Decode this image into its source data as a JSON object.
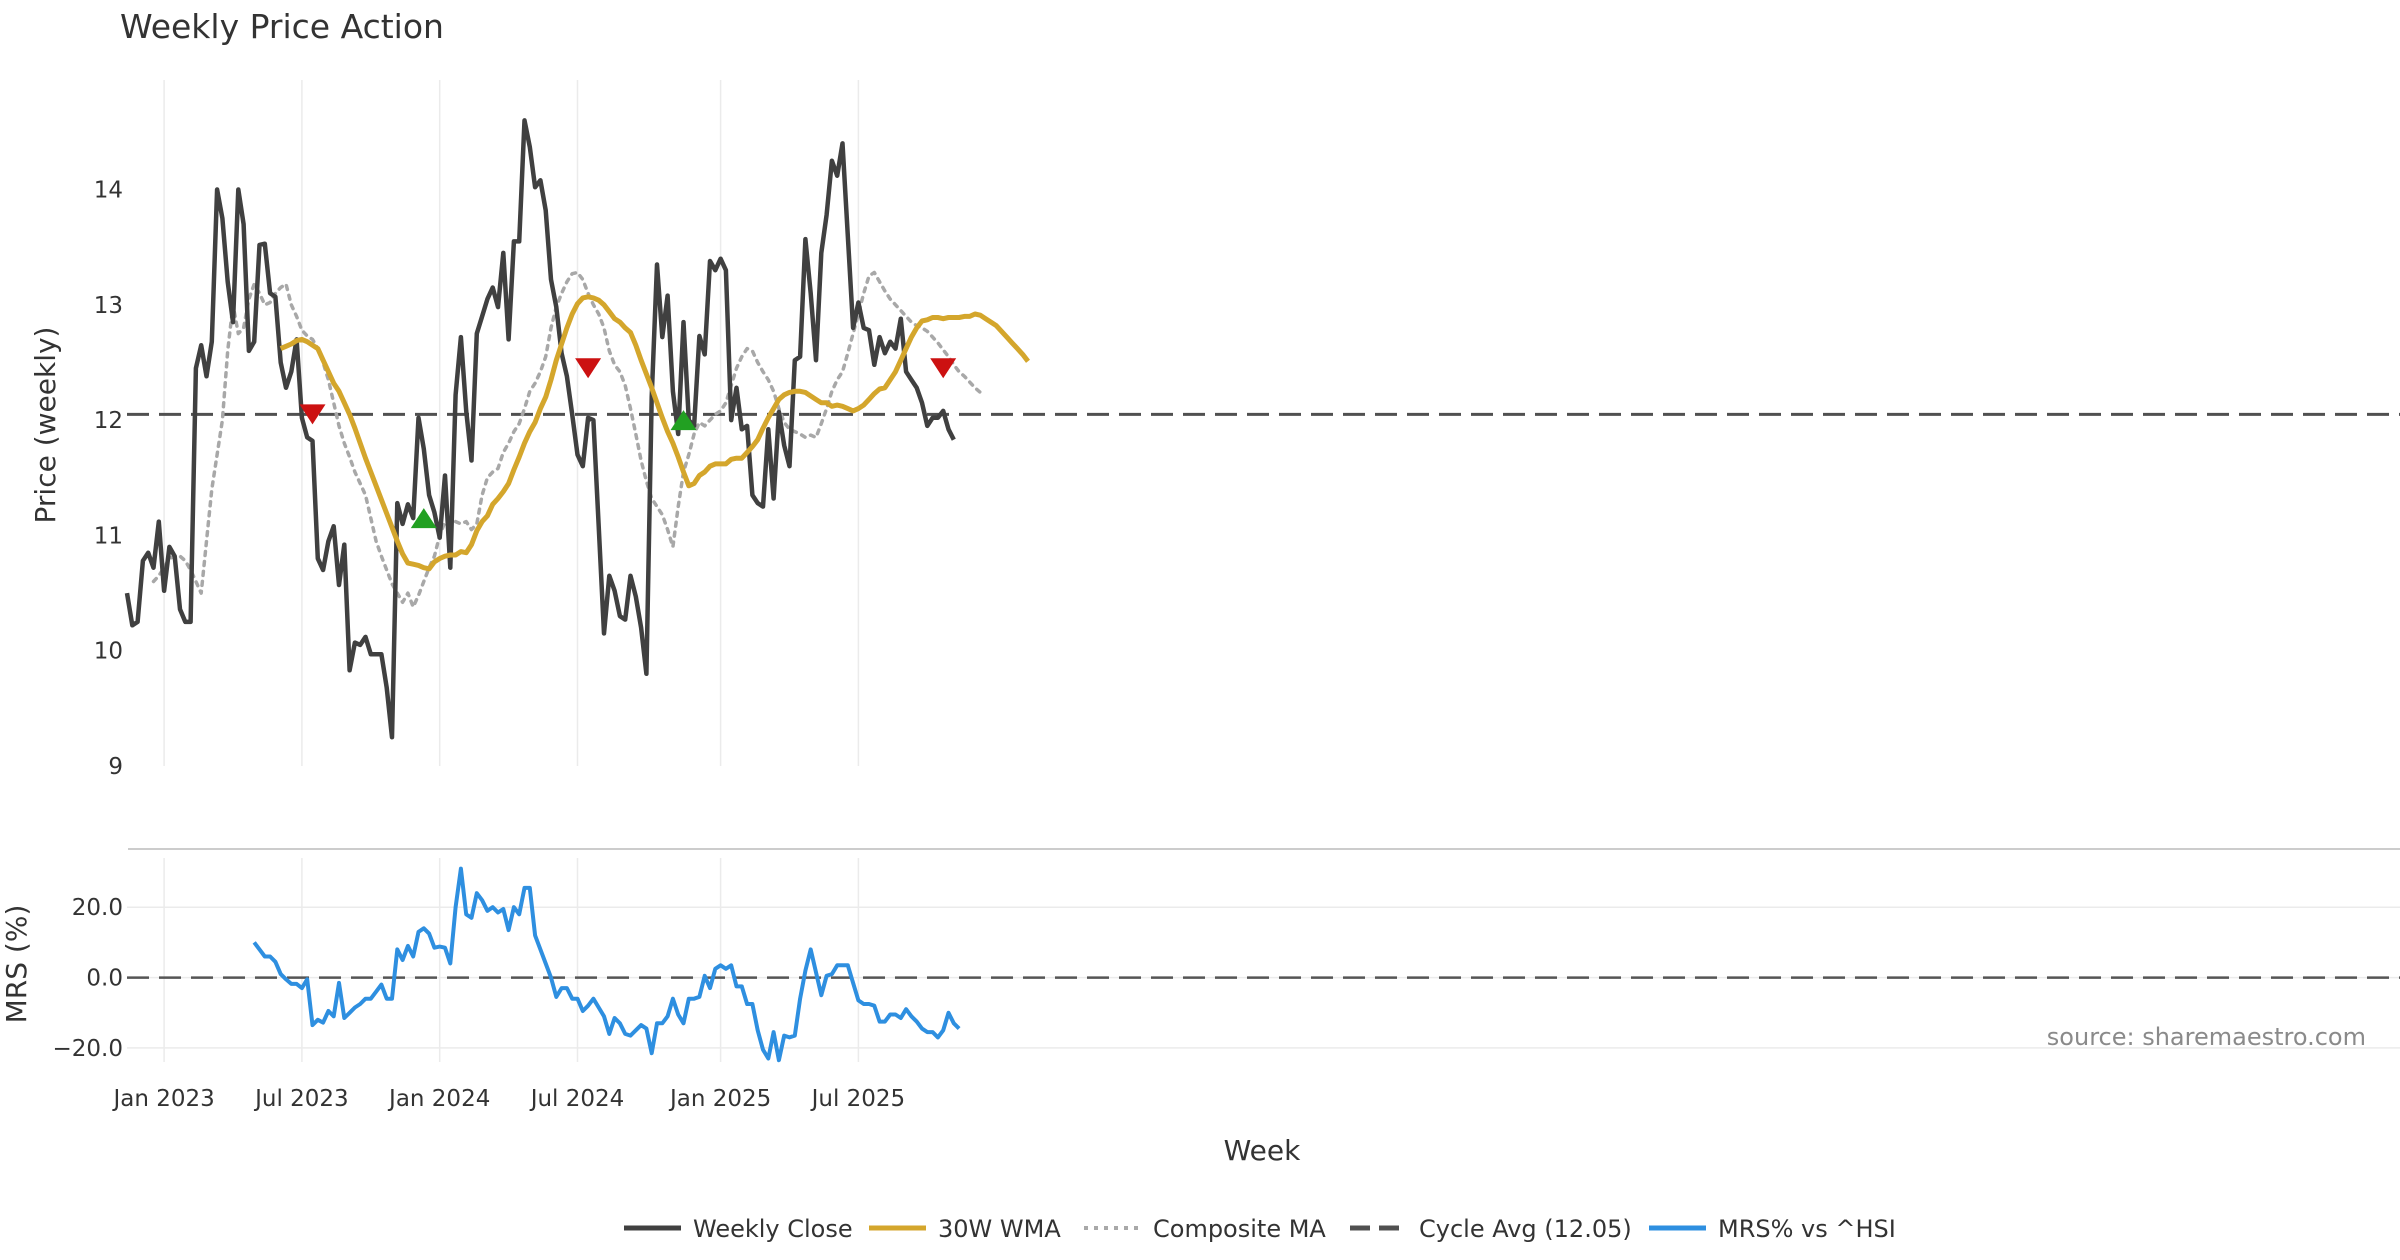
{
  "chart_data": {
    "type": "line",
    "title": "Weekly Price Action",
    "xlabel": "Week",
    "source_note": "source: sharemaestro.com",
    "x_ticks": [
      "Jan 2023",
      "Jul 2023",
      "Jan 2024",
      "Jul 2024",
      "Jan 2025",
      "Jul 2025"
    ],
    "x_start": "2022-11-14",
    "x_step_weeks": 1,
    "price_panel": {
      "ylabel": "Price (weekly)",
      "ylim": [
        9,
        14.95
      ],
      "y_ticks": [
        "9",
        "10",
        "11",
        "12",
        "13",
        "14"
      ],
      "y_tick_values": [
        9,
        10,
        11,
        12,
        13,
        14
      ],
      "series": [
        {
          "name": "Weekly Close",
          "color": "#404040",
          "style": "solid",
          "values": [
            10.5,
            10.22,
            10.25,
            10.78,
            10.85,
            10.72,
            11.12,
            10.52,
            10.9,
            10.82,
            10.36,
            10.25,
            10.25,
            12.45,
            12.65,
            12.38,
            12.68,
            14.0,
            13.75,
            13.2,
            12.85,
            14.0,
            13.7,
            12.6,
            12.68,
            13.52,
            13.53,
            13.1,
            13.07,
            12.5,
            12.28,
            12.42,
            12.7,
            12.02,
            11.85,
            11.82,
            10.8,
            10.7,
            10.95,
            11.08,
            10.57,
            10.92,
            9.83,
            10.07,
            10.05,
            10.12,
            9.97,
            9.97,
            9.97,
            9.68,
            9.25,
            11.28,
            11.1,
            11.27,
            11.15,
            12.02,
            11.75,
            11.35,
            11.2,
            10.98,
            11.52,
            10.72,
            12.22,
            12.72,
            12.08,
            11.65,
            12.75,
            12.9,
            13.05,
            13.15,
            12.98,
            13.45,
            12.7,
            13.55,
            13.55,
            14.6,
            14.37,
            14.02,
            14.08,
            13.82,
            13.22,
            12.98,
            12.58,
            12.38,
            12.05,
            11.7,
            11.6,
            12.02,
            12.0,
            11.08,
            10.15,
            10.65,
            10.52,
            10.3,
            10.27,
            10.65,
            10.47,
            10.2,
            9.8,
            12.2,
            13.35,
            12.72,
            13.08,
            12.25,
            11.88,
            12.85,
            12.0,
            11.95,
            12.73,
            12.57,
            13.38,
            13.3,
            13.4,
            13.3,
            12.0,
            12.28,
            11.92,
            11.95,
            11.35,
            11.28,
            11.25,
            11.92,
            11.32,
            12.07,
            11.78,
            11.6,
            12.52,
            12.55,
            13.57,
            13.1,
            12.52,
            13.45,
            13.78,
            14.25,
            14.12,
            14.4,
            13.6,
            12.8,
            13.02,
            12.8,
            12.78,
            12.48,
            12.72,
            12.58,
            12.68,
            12.62,
            12.88,
            12.42,
            12.35,
            12.28,
            12.15,
            11.95,
            12.02,
            12.02,
            12.08,
            11.92,
            11.83
          ]
        },
        {
          "name": "30W WMA",
          "color": "#d4a62c",
          "style": "solid",
          "start_index": 29,
          "values": [
            12.62,
            12.64,
            12.66,
            12.69,
            12.7,
            12.68,
            12.65,
            12.62,
            12.52,
            12.42,
            12.32,
            12.25,
            12.15,
            12.05,
            11.93,
            11.8,
            11.67,
            11.55,
            11.43,
            11.31,
            11.19,
            11.07,
            10.95,
            10.84,
            10.76,
            10.75,
            10.74,
            10.72,
            10.71,
            10.77,
            10.8,
            10.82,
            10.83,
            10.83,
            10.86,
            10.85,
            10.92,
            11.04,
            11.12,
            11.17,
            11.27,
            11.32,
            11.38,
            11.45,
            11.57,
            11.68,
            11.8,
            11.9,
            11.98,
            12.1,
            12.2,
            12.35,
            12.52,
            12.66,
            12.8,
            12.92,
            13.01,
            13.06,
            13.07,
            13.06,
            13.04,
            13.0,
            12.94,
            12.88,
            12.85,
            12.8,
            12.76,
            12.65,
            12.52,
            12.4,
            12.28,
            12.15,
            12.02,
            11.9,
            11.8,
            11.68,
            11.55,
            11.43,
            11.45,
            11.52,
            11.55,
            11.6,
            11.62,
            11.62,
            11.62,
            11.66,
            11.67,
            11.67,
            11.72,
            11.77,
            11.83,
            11.93,
            12.02,
            12.1,
            12.18,
            12.22,
            12.24,
            12.25,
            12.25,
            12.24,
            12.21,
            12.18,
            12.15,
            12.15,
            12.12,
            12.13,
            12.12,
            12.1,
            12.08,
            12.1,
            12.13,
            12.18,
            12.23,
            12.27,
            12.28,
            12.35,
            12.42,
            12.52,
            12.62,
            12.72,
            12.8,
            12.86,
            12.87,
            12.89,
            12.89,
            12.88,
            12.89,
            12.89,
            12.89,
            12.9,
            12.9,
            12.92,
            12.91,
            12.88,
            12.85,
            12.82,
            12.77,
            12.72,
            12.67,
            12.62,
            12.57,
            12.51
          ]
        },
        {
          "name": "Composite MA",
          "color": "#a8a8a8",
          "style": "dotted",
          "start_index": 5,
          "values": [
            10.6,
            10.65,
            10.72,
            10.8,
            10.82,
            10.82,
            10.78,
            10.7,
            10.6,
            10.5,
            10.95,
            11.4,
            11.7,
            12.0,
            12.6,
            13.0,
            12.75,
            12.8,
            13.05,
            13.18,
            13.1,
            13.0,
            13.02,
            13.1,
            13.15,
            13.18,
            13.0,
            12.9,
            12.78,
            12.73,
            12.7,
            12.62,
            12.5,
            12.35,
            12.15,
            11.95,
            11.8,
            11.68,
            11.55,
            11.45,
            11.35,
            11.15,
            10.95,
            10.82,
            10.7,
            10.58,
            10.5,
            10.42,
            10.5,
            10.38,
            10.48,
            10.6,
            10.72,
            10.82,
            11.0,
            11.12,
            11.15,
            11.12,
            11.1,
            11.12,
            11.05,
            11.1,
            11.35,
            11.5,
            11.55,
            11.58,
            11.72,
            11.8,
            11.9,
            11.97,
            12.1,
            12.25,
            12.32,
            12.42,
            12.55,
            12.8,
            12.98,
            13.1,
            13.2,
            13.27,
            13.28,
            13.22,
            13.1,
            13.0,
            12.92,
            12.8,
            12.6,
            12.48,
            12.42,
            12.3,
            12.1,
            11.88,
            11.65,
            11.47,
            11.32,
            11.25,
            11.18,
            11.05,
            10.9,
            11.25,
            11.55,
            11.7,
            11.88,
            11.98,
            11.95,
            12.0,
            12.05,
            12.08,
            12.15,
            12.3,
            12.45,
            12.55,
            12.62,
            12.6,
            12.5,
            12.42,
            12.35,
            12.25,
            12.1,
            11.98,
            11.92,
            11.9,
            11.88,
            11.85,
            11.87,
            11.85,
            11.97,
            12.1,
            12.25,
            12.35,
            12.42,
            12.58,
            12.75,
            12.92,
            13.1,
            13.25,
            13.28,
            13.2,
            13.12,
            13.05,
            13.0,
            12.95,
            12.9,
            12.85,
            12.82,
            12.8,
            12.77,
            12.72,
            12.67,
            12.61,
            12.55,
            12.48,
            12.42,
            12.38,
            12.33,
            12.28,
            12.24
          ]
        }
      ],
      "reference_line": {
        "name": "Cycle Avg (12.05)",
        "value": 12.05,
        "color": "#505050",
        "style": "dashed"
      },
      "markers": [
        {
          "type": "sell",
          "index": 35,
          "value": 12.05,
          "color": "#cc1111"
        },
        {
          "type": "buy",
          "index": 56,
          "value": 11.15,
          "color": "#22a022"
        },
        {
          "type": "sell",
          "index": 87,
          "value": 12.45,
          "color": "#cc1111"
        },
        {
          "type": "buy",
          "index": 105,
          "value": 12.0,
          "color": "#22a022"
        },
        {
          "type": "sell",
          "index": 154,
          "value": 12.45,
          "color": "#cc1111"
        }
      ]
    },
    "mrs_panel": {
      "ylabel": "MRS (%)",
      "ylim": [
        -24,
        34
      ],
      "y_ticks": [
        "−20.0",
        "0.0",
        "20.0"
      ],
      "y_tick_values": [
        -20,
        0,
        20
      ],
      "zero_line": {
        "value": 0,
        "color": "#555555",
        "style": "dashed"
      },
      "series": [
        {
          "name": "MRS% vs ^HSI",
          "color": "#2e8fe0",
          "style": "solid",
          "start_index": 24,
          "values": [
            10.0,
            8.0,
            6.0,
            6.0,
            4.5,
            1.0,
            -0.5,
            -1.8,
            -1.8,
            -3.0,
            -0.5,
            -13.5,
            -12.0,
            -12.8,
            -9.5,
            -11.0,
            -1.5,
            -11.5,
            -10.0,
            -8.5,
            -7.5,
            -6.0,
            -6.0,
            -4.0,
            -2.0,
            -6.0,
            -6.0,
            8.0,
            5.0,
            9.0,
            6.0,
            13.0,
            14.0,
            12.5,
            8.5,
            8.8,
            8.5,
            4.0,
            20.0,
            31.0,
            18.0,
            17.0,
            24.0,
            22.0,
            19.0,
            20.0,
            18.5,
            19.5,
            13.5,
            20.0,
            18.0,
            25.5,
            25.5,
            12.0,
            8.0,
            4.0,
            0.0,
            -5.5,
            -3.0,
            -3.0,
            -6.0,
            -6.0,
            -9.5,
            -8.0,
            -6.0,
            -8.5,
            -11.0,
            -16.0,
            -11.5,
            -13.0,
            -16.0,
            -16.5,
            -15.0,
            -13.5,
            -14.5,
            -21.5,
            -13.0,
            -13.0,
            -11.0,
            -6.0,
            -10.5,
            -13.0,
            -6.0,
            -6.0,
            -5.5,
            0.5,
            -3.0,
            2.5,
            3.5,
            2.5,
            3.5,
            -2.5,
            -2.5,
            -7.5,
            -7.5,
            -15.0,
            -20.5,
            -23.0,
            -15.5,
            -23.5,
            -16.5,
            -17.0,
            -16.5,
            -6.0,
            2.0,
            8.0,
            1.5,
            -5.0,
            0.5,
            1.0,
            3.5,
            3.5,
            3.5,
            -1.5,
            -6.5,
            -7.5,
            -7.5,
            -8.0,
            -12.5,
            -12.5,
            -10.5,
            -10.5,
            -11.5,
            -9.0,
            -11.0,
            -12.5,
            -14.5,
            -15.5,
            -15.5,
            -17.0,
            -15.0,
            -10.0,
            -13.0,
            -14.5
          ]
        }
      ]
    },
    "legend": {
      "position": "bottom-center",
      "entries": [
        {
          "label": "Weekly Close",
          "color": "#404040",
          "style": "solid"
        },
        {
          "label": "30W WMA",
          "color": "#d4a62c",
          "style": "solid"
        },
        {
          "label": "Composite MA",
          "color": "#a8a8a8",
          "style": "dotted"
        },
        {
          "label": "Cycle Avg (12.05)",
          "color": "#505050",
          "style": "dashed"
        },
        {
          "label": "MRS% vs ^HSI",
          "color": "#2e8fe0",
          "style": "solid"
        }
      ]
    }
  }
}
